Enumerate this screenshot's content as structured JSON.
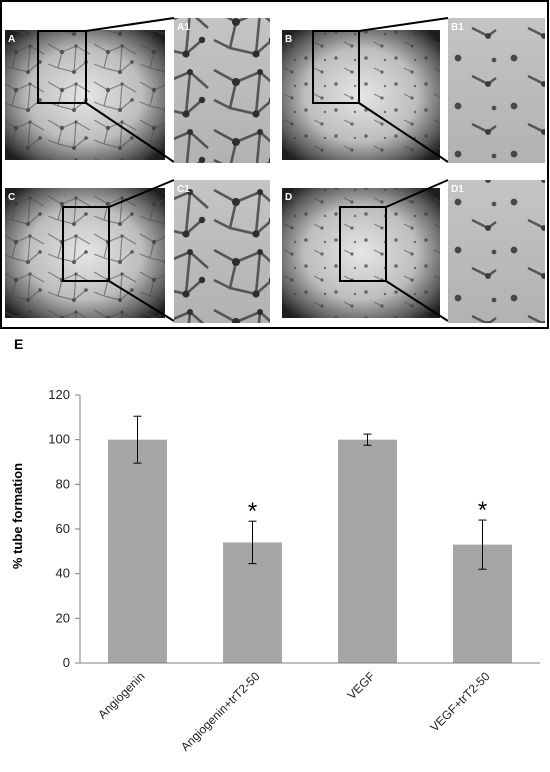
{
  "panels": [
    {
      "label": "A",
      "kind": "overview"
    },
    {
      "label": "A1",
      "kind": "zoom"
    },
    {
      "label": "B",
      "kind": "overview"
    },
    {
      "label": "B1",
      "kind": "zoom"
    },
    {
      "label": "C",
      "kind": "overview"
    },
    {
      "label": "C1",
      "kind": "zoom"
    },
    {
      "label": "D",
      "kind": "overview"
    },
    {
      "label": "D1",
      "kind": "zoom"
    }
  ],
  "chart_label": "E",
  "chart_data": {
    "type": "bar",
    "categories": [
      "Angiogenin",
      "Angiogenin+trT2-50",
      "VEGF",
      "VEGF+trT2-50"
    ],
    "values": [
      100,
      54,
      100,
      53
    ],
    "errors": [
      10.5,
      9.5,
      2.5,
      11
    ],
    "significance": [
      "",
      "*",
      "",
      "*"
    ],
    "title": "",
    "xlabel": "",
    "ylabel": "% tube formation",
    "ylim": [
      0,
      120
    ],
    "yticks": [
      0,
      20,
      40,
      60,
      80,
      100,
      120
    ],
    "bar_color": "#a6a6a6",
    "grid": false,
    "legend": "none"
  }
}
